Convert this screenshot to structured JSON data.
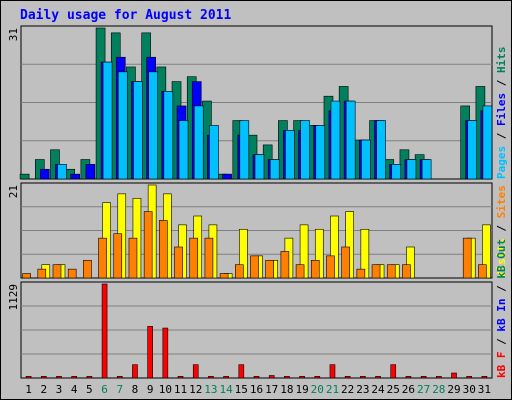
{
  "colors": {
    "background": "#C0C0C0",
    "panel_border": "#808080",
    "title": "#0000FF",
    "hits": "#00805C",
    "files": "#0000FF",
    "pages": "#00C0FF",
    "visits": "#FFFF00",
    "sites": "#FF8000",
    "kb_in": "#0000FF",
    "kb_out": "#00805C",
    "kbytes": "#FF0000",
    "weekend_label": "#00805C",
    "weekday_label": "#000000"
  },
  "chart_data": {
    "type": "bar",
    "title": "Daily usage for August 2011",
    "x": [
      "1",
      "2",
      "3",
      "4",
      "5",
      "6",
      "7",
      "8",
      "9",
      "10",
      "11",
      "12",
      "13",
      "14",
      "15",
      "16",
      "17",
      "18",
      "19",
      "20",
      "21",
      "22",
      "23",
      "24",
      "25",
      "26",
      "27",
      "28",
      "29",
      "30",
      "31"
    ],
    "weekend_days": [
      "6",
      "7",
      "13",
      "14",
      "20",
      "21",
      "27",
      "28"
    ],
    "panels": [
      {
        "name": "top",
        "ymax_label": "31",
        "ymax": 31,
        "legend": [
          {
            "text": "Pages",
            "color_key": "pages"
          },
          {
            "text": " / ",
            "color_key": "weekday_label"
          },
          {
            "text": "Files",
            "color_key": "files"
          },
          {
            "text": " / ",
            "color_key": "weekday_label"
          },
          {
            "text": "Hits",
            "color_key": "hits"
          }
        ],
        "series": [
          {
            "name": "Hits",
            "color_key": "hits",
            "values": [
              1,
              4,
              6,
              2,
              4,
              31,
              30,
              23,
              30,
              23,
              20,
              21,
              16,
              1,
              12,
              9,
              7,
              12,
              12,
              11,
              17,
              19,
              8,
              12,
              4,
              6,
              5,
              0,
              0,
              15,
              19
            ]
          },
          {
            "name": "Files",
            "color_key": "files",
            "values": [
              0,
              2,
              3,
              1,
              3,
              24,
              25,
              20,
              25,
              18,
              15,
              20,
              9,
              1,
              9,
              5,
              4,
              10,
              10,
              11,
              14,
              16,
              8,
              12,
              3,
              4,
              4,
              0,
              0,
              12,
              14
            ]
          },
          {
            "name": "Pages",
            "color_key": "pages",
            "values": [
              0,
              0,
              3,
              0,
              0,
              24,
              22,
              20,
              22,
              18,
              12,
              15,
              11,
              0,
              12,
              5,
              4,
              10,
              12,
              11,
              16,
              16,
              8,
              12,
              3,
              4,
              4,
              0,
              0,
              12,
              15
            ]
          }
        ]
      },
      {
        "name": "middle",
        "ymax_label": "21",
        "ymax": 21,
        "legend": [
          {
            "text": "Visits",
            "color_key": "visits"
          },
          {
            "text": " / ",
            "color_key": "weekday_label"
          },
          {
            "text": "Sites",
            "color_key": "sites"
          }
        ],
        "series": [
          {
            "name": "Visits",
            "color_key": "visits",
            "values": [
              0,
              3,
              3,
              0,
              0,
              17,
              19,
              18,
              21,
              19,
              12,
              14,
              12,
              1,
              11,
              5,
              4,
              9,
              12,
              11,
              14,
              15,
              11,
              3,
              3,
              7,
              0,
              0,
              0,
              9,
              12
            ]
          },
          {
            "name": "Sites",
            "color_key": "sites",
            "values": [
              1,
              2,
              3,
              2,
              4,
              9,
              10,
              9,
              15,
              13,
              7,
              9,
              9,
              1,
              3,
              5,
              4,
              6,
              3,
              4,
              5,
              7,
              2,
              3,
              3,
              3,
              0,
              0,
              0,
              9,
              3
            ]
          }
        ]
      },
      {
        "name": "bottom",
        "ymax_label": "1129",
        "ymax": 1129,
        "legend": [
          {
            "text": "kB F",
            "color_key": "kbytes"
          },
          {
            "text": " / ",
            "color_key": "weekday_label"
          },
          {
            "text": "kB In",
            "color_key": "kb_in"
          },
          {
            "text": " / ",
            "color_key": "weekday_label"
          },
          {
            "text": "kB Out",
            "color_key": "kb_out"
          }
        ],
        "series": [
          {
            "name": "kB F",
            "color_key": "kbytes",
            "values": [
              20,
              20,
              20,
              20,
              20,
              1129,
              20,
              160,
              620,
              600,
              20,
              160,
              20,
              20,
              160,
              20,
              30,
              20,
              20,
              20,
              160,
              20,
              20,
              20,
              160,
              20,
              20,
              20,
              60,
              20,
              20
            ]
          }
        ]
      }
    ]
  }
}
